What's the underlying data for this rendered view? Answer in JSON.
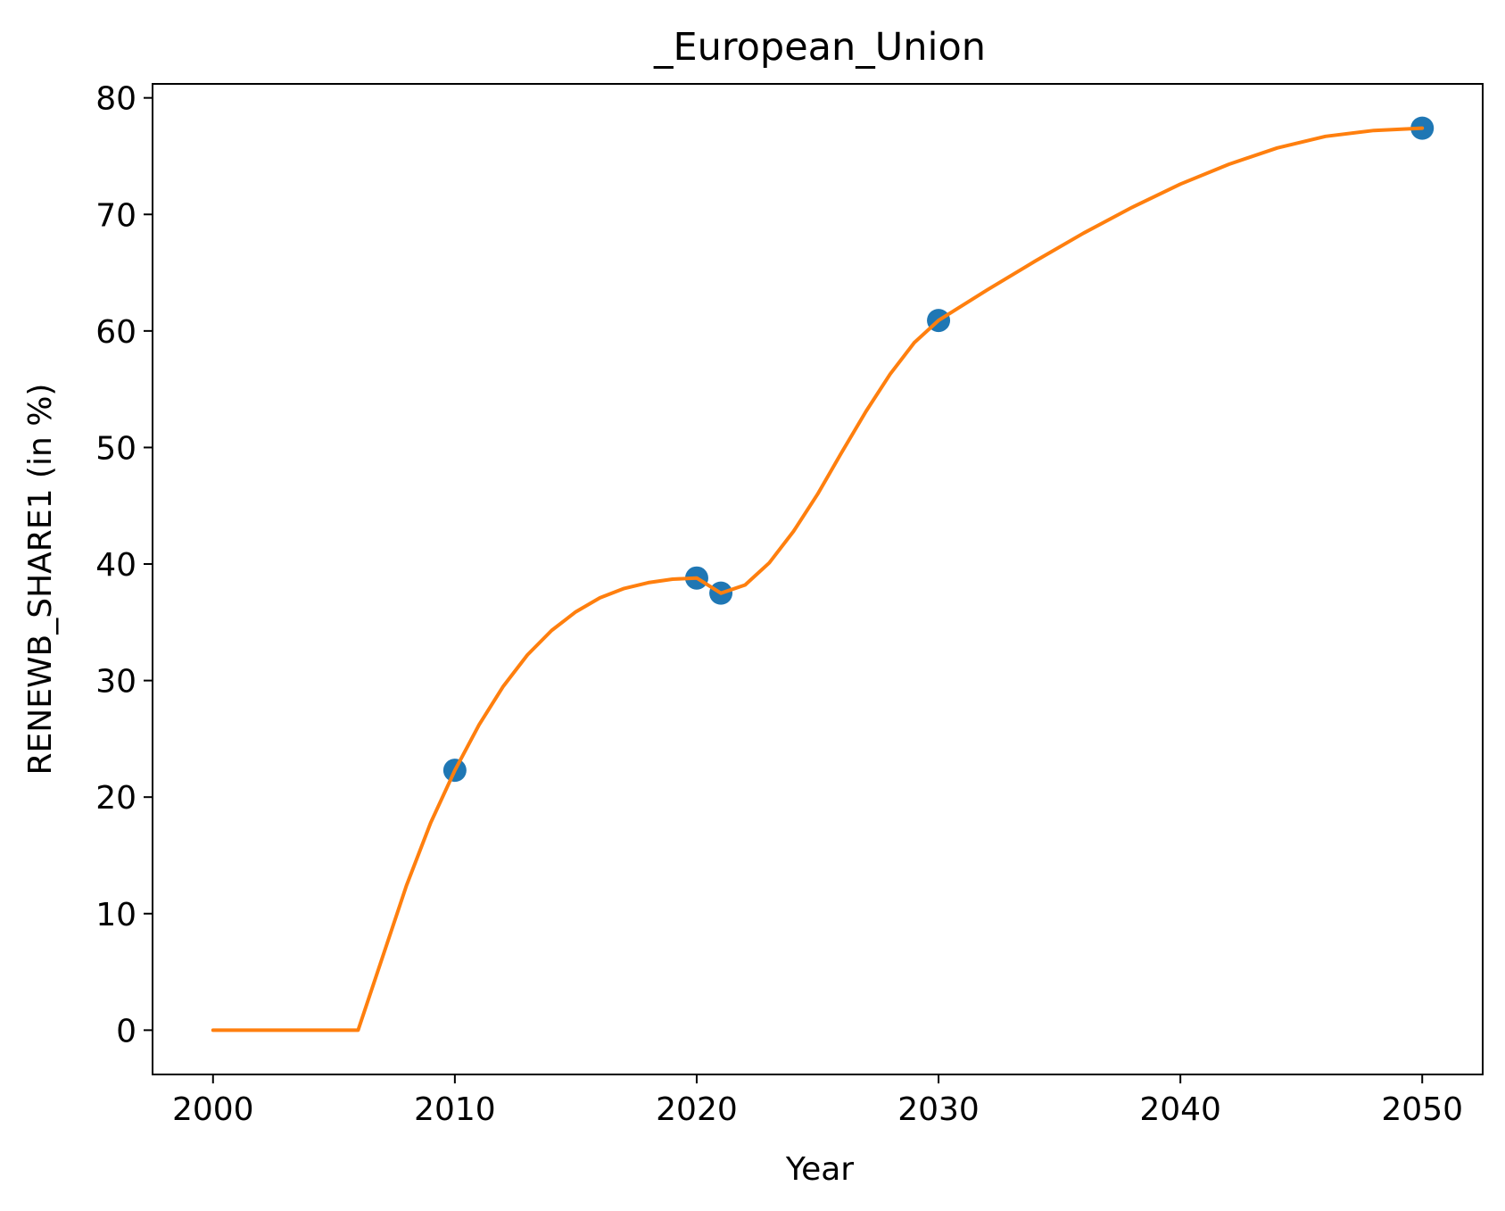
{
  "colors": {
    "points": "#1f77b4",
    "line": "#ff7f0e",
    "axes": "#000000",
    "background": "#ffffff"
  },
  "chart_data": {
    "type": "line",
    "title": "_European_Union",
    "xlabel": "Year",
    "ylabel": "RENEWB_SHARE1 (in %)",
    "xlim": [
      1997.5,
      2052.5
    ],
    "ylim": [
      -3.8,
      81.2
    ],
    "xticks": [
      2000,
      2010,
      2020,
      2030,
      2040,
      2050
    ],
    "xtick_labels": [
      "2000",
      "2010",
      "2020",
      "2030",
      "2040",
      "2050"
    ],
    "yticks": [
      0,
      10,
      20,
      30,
      40,
      50,
      60,
      70,
      80
    ],
    "ytick_labels": [
      "0",
      "10",
      "20",
      "30",
      "40",
      "50",
      "60",
      "70",
      "80"
    ],
    "grid": false,
    "series": [
      {
        "type": "scatter",
        "x": [
          2010,
          2020,
          2021,
          2030,
          2050
        ],
        "y": [
          22.3,
          38.8,
          37.5,
          60.9,
          77.4
        ]
      },
      {
        "type": "line",
        "x": [
          2000,
          2006,
          2007,
          2008,
          2009,
          2010,
          2011,
          2012,
          2013,
          2014,
          2015,
          2016,
          2017,
          2018,
          2019,
          2020,
          2021,
          2022,
          2023,
          2024,
          2025,
          2026,
          2027,
          2028,
          2029,
          2030,
          2032,
          2034,
          2036,
          2038,
          2040,
          2042,
          2044,
          2046,
          2048,
          2050
        ],
        "y": [
          0,
          0,
          6.2,
          12.4,
          17.8,
          22.3,
          26.2,
          29.5,
          32.2,
          34.3,
          35.9,
          37.1,
          37.9,
          38.4,
          38.7,
          38.8,
          37.5,
          38.2,
          40.1,
          42.8,
          46.0,
          49.6,
          53.1,
          56.3,
          59.0,
          60.9,
          63.5,
          66.0,
          68.4,
          70.6,
          72.6,
          74.3,
          75.7,
          76.7,
          77.2,
          77.4
        ]
      }
    ]
  }
}
